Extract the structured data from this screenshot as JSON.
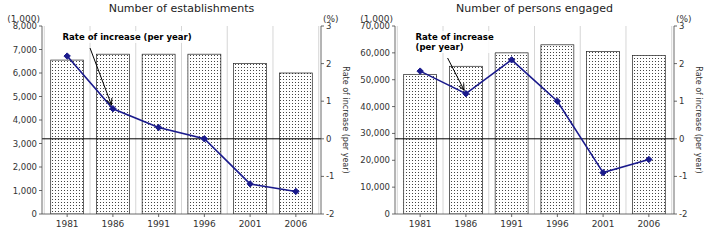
{
  "chart_data": [
    {
      "type": "bar",
      "title": "Number of establishments",
      "ylabel": "(1,000)",
      "y2unit": "(%)",
      "y2label": "Rate of increase (per year)",
      "annotation": "Rate of increase (per year)",
      "categories": [
        "1981",
        "1986",
        "1991",
        "1996",
        "2001",
        "2006"
      ],
      "series": [
        {
          "type": "bar",
          "color": "#ffffff",
          "values": [
            6550,
            6800,
            6800,
            6800,
            6400,
            6000
          ]
        },
        {
          "type": "line",
          "axis": "y2",
          "color": "#1a1a8c",
          "marker": "diamond",
          "values": [
            2.2,
            0.8,
            0.3,
            0.0,
            -1.2,
            -1.4
          ]
        }
      ],
      "ylim": [
        0,
        8000
      ],
      "yticks": [
        0,
        {
          "value": 1000,
          "label": "1,000"
        },
        {
          "value": 2000,
          "label": "2,000"
        },
        {
          "value": 3000,
          "label": "3,000"
        },
        {
          "value": 4000,
          "label": "4,000"
        },
        {
          "value": 5000,
          "label": "5,000"
        },
        {
          "value": 6000,
          "label": "6,000"
        },
        {
          "value": 7000,
          "label": "7,000"
        },
        {
          "value": 8000,
          "label": "8,000"
        }
      ],
      "y2lim": [
        -2,
        3
      ],
      "y2ticks": [
        -2,
        -1,
        0,
        1,
        2,
        3
      ],
      "grid": "x"
    },
    {
      "type": "bar",
      "title": "Number of persons engaged",
      "ylabel": "(1,000)",
      "y2unit": "(%)",
      "y2label": "Rate of increase (per year)",
      "annotation": "Rate of increase\n(per year)",
      "categories": [
        "1981",
        "1986",
        "1991",
        "1996",
        "2001",
        "2006"
      ],
      "series": [
        {
          "type": "bar",
          "color": "#ffffff",
          "values": [
            52000,
            55000,
            60000,
            63000,
            60500,
            59000
          ]
        },
        {
          "type": "line",
          "axis": "y2",
          "color": "#1a1a8c",
          "marker": "diamond",
          "values": [
            1.8,
            1.2,
            2.1,
            1.0,
            -0.9,
            -0.55
          ]
        }
      ],
      "ylim": [
        0,
        70000
      ],
      "yticks": [
        0,
        {
          "value": 10000,
          "label": "10,000"
        },
        {
          "value": 20000,
          "label": "20,000"
        },
        {
          "value": 30000,
          "label": "30,000"
        },
        {
          "value": 40000,
          "label": "40,000"
        },
        {
          "value": 50000,
          "label": "50,000"
        },
        {
          "value": 60000,
          "label": "60,000"
        },
        {
          "value": 70000,
          "label": "70,000"
        }
      ],
      "y2lim": [
        -2,
        3
      ],
      "y2ticks": [
        -2,
        -1,
        0,
        1,
        2,
        3
      ],
      "grid": "x"
    }
  ]
}
